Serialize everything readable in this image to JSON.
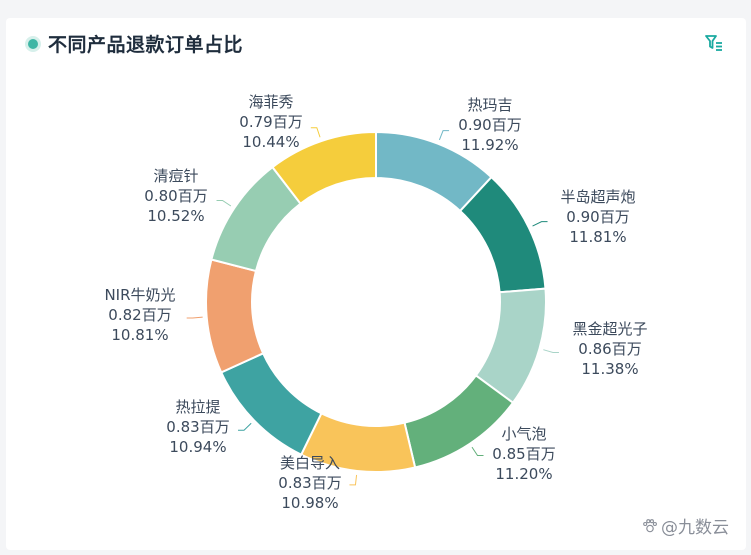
{
  "title": "不同产品退款订单占比",
  "icons": {
    "title_marker": "dot-icon",
    "filter": "filter-icon"
  },
  "colors": {
    "accent": "#1aa9a0",
    "title_marker": "#3fb6a5"
  },
  "watermark": {
    "text": "@九数云",
    "icon": "paw-icon"
  },
  "chart_data": {
    "type": "pie",
    "variant": "donut",
    "title": "不同产品退款订单占比",
    "unit": "百万",
    "series": [
      {
        "name": "热玛吉",
        "value": 0.9,
        "value_label": "0.90百万",
        "percent_label": "11.92%",
        "color": "#72b8c6"
      },
      {
        "name": "半岛超声炮",
        "value": 0.9,
        "value_label": "0.90百万",
        "percent_label": "11.81%",
        "color": "#1f8a7b"
      },
      {
        "name": "黑金超光子",
        "value": 0.86,
        "value_label": "0.86百万",
        "percent_label": "11.38%",
        "color": "#a9d4c8"
      },
      {
        "name": "小气泡",
        "value": 0.85,
        "value_label": "0.85百万",
        "percent_label": "11.20%",
        "color": "#63b07b"
      },
      {
        "name": "美白导入",
        "value": 0.83,
        "value_label": "0.83百万",
        "percent_label": "10.98%",
        "color": "#f9c45a"
      },
      {
        "name": "热拉提",
        "value": 0.83,
        "value_label": "0.83百万",
        "percent_label": "10.94%",
        "color": "#3ea3a2"
      },
      {
        "name": "NIR牛奶光",
        "value": 0.82,
        "value_label": "0.82百万",
        "percent_label": "10.81%",
        "color": "#f0a06f"
      },
      {
        "name": "清痘针",
        "value": 0.8,
        "value_label": "0.80百万",
        "percent_label": "10.52%",
        "color": "#97cdb2"
      },
      {
        "name": "海菲秀",
        "value": 0.79,
        "value_label": "0.79百万",
        "percent_label": "10.44%",
        "color": "#f5cd3c"
      }
    ],
    "legend": "none",
    "labels": "outside"
  }
}
